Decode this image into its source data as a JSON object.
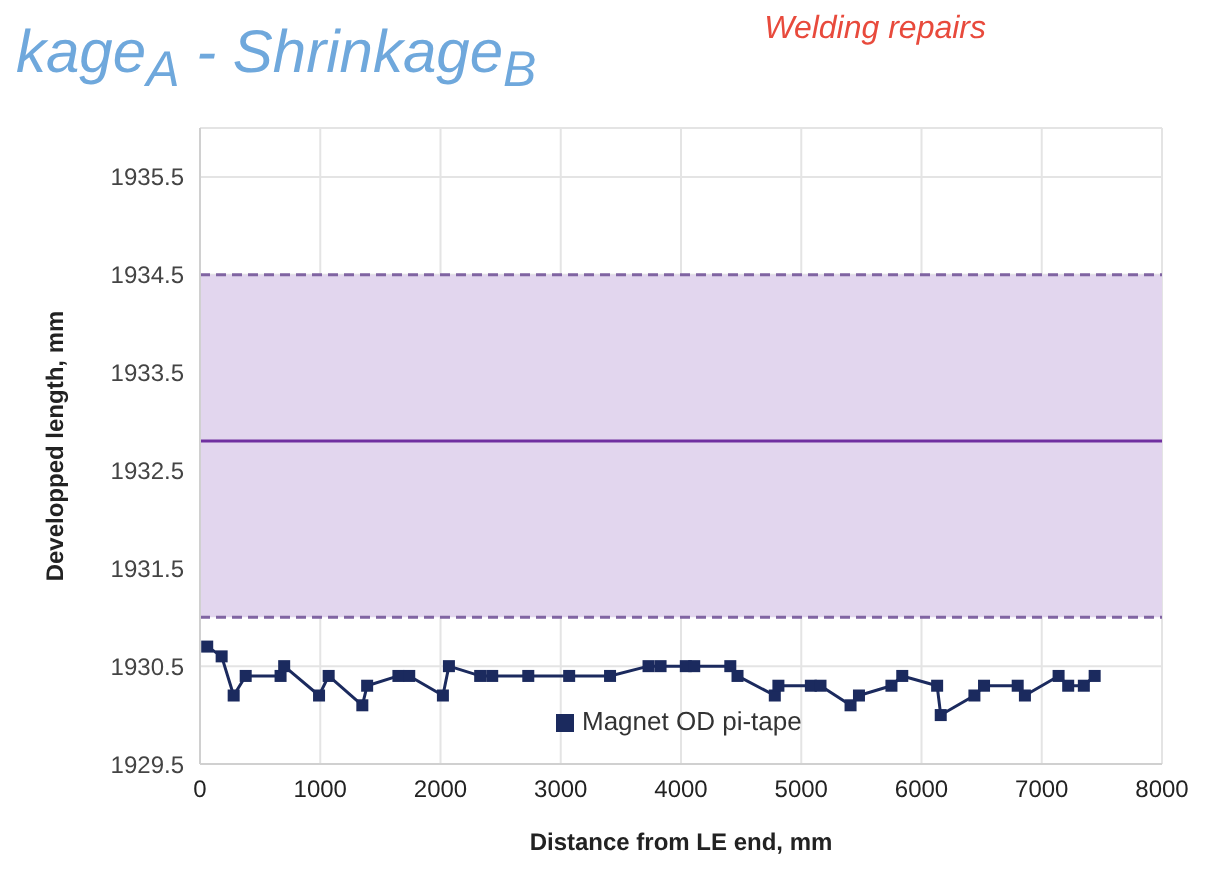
{
  "chart_data": {
    "type": "line",
    "title": "kage$_{A}$ - Shrinkage$_{B}$",
    "annotations": [
      "Welding repairs"
    ],
    "xlabel": "Distance from LE end, mm",
    "ylabel": "Developped length, mm",
    "xlim": [
      0,
      8000
    ],
    "xticks": [
      0,
      1000,
      2000,
      3000,
      4000,
      5000,
      6000,
      7000,
      8000
    ],
    "ylim": [
      1929.5,
      1936
    ],
    "yticks": [
      1929.5,
      1930.5,
      1931.5,
      1932.5,
      1933.5,
      1934.5,
      1935.5
    ],
    "grid": true,
    "legend": "bottom",
    "marker": "square",
    "line_style": "solid",
    "bands": [
      {
        "axis": "y",
        "from": 1931.0,
        "to": 1934.5,
        "color": "#e2d6ee"
      }
    ],
    "ref_lines": [
      {
        "axis": "y",
        "value": 1934.5,
        "color": "#8064a2",
        "line_style": "dashed"
      },
      {
        "axis": "y",
        "value": 1931.0,
        "color": "#8064a2",
        "line_style": "dashed"
      },
      {
        "axis": "y",
        "value": 1932.8,
        "color": "#7030a0",
        "line_style": "solid"
      }
    ],
    "series": [
      {
        "name": "Magnet OD pi-tape",
        "color": "#1b2a5e",
        "x": [
          60,
          180,
          280,
          380,
          670,
          700,
          990,
          1070,
          1350,
          1390,
          1650,
          1740,
          2020,
          2070,
          2330,
          2430,
          2730,
          3070,
          3410,
          3730,
          3830,
          4040,
          4110,
          4410,
          4470,
          4780,
          4810,
          5080,
          5160,
          5410,
          5480,
          5750,
          5840,
          6130,
          6160,
          6440,
          6520,
          6800,
          6860,
          7140,
          7220,
          7350,
          7440
        ],
        "values": [
          1930.7,
          1930.6,
          1930.2,
          1930.4,
          1930.4,
          1930.5,
          1930.2,
          1930.4,
          1930.1,
          1930.3,
          1930.4,
          1930.4,
          1930.2,
          1930.5,
          1930.4,
          1930.4,
          1930.4,
          1930.4,
          1930.4,
          1930.5,
          1930.5,
          1930.5,
          1930.5,
          1930.5,
          1930.4,
          1930.2,
          1930.3,
          1930.3,
          1930.3,
          1930.1,
          1930.2,
          1930.3,
          1930.4,
          1930.3,
          1930.0,
          1930.2,
          1930.3,
          1930.3,
          1930.2,
          1930.4,
          1930.3,
          1930.3,
          1930.4
        ]
      }
    ]
  }
}
